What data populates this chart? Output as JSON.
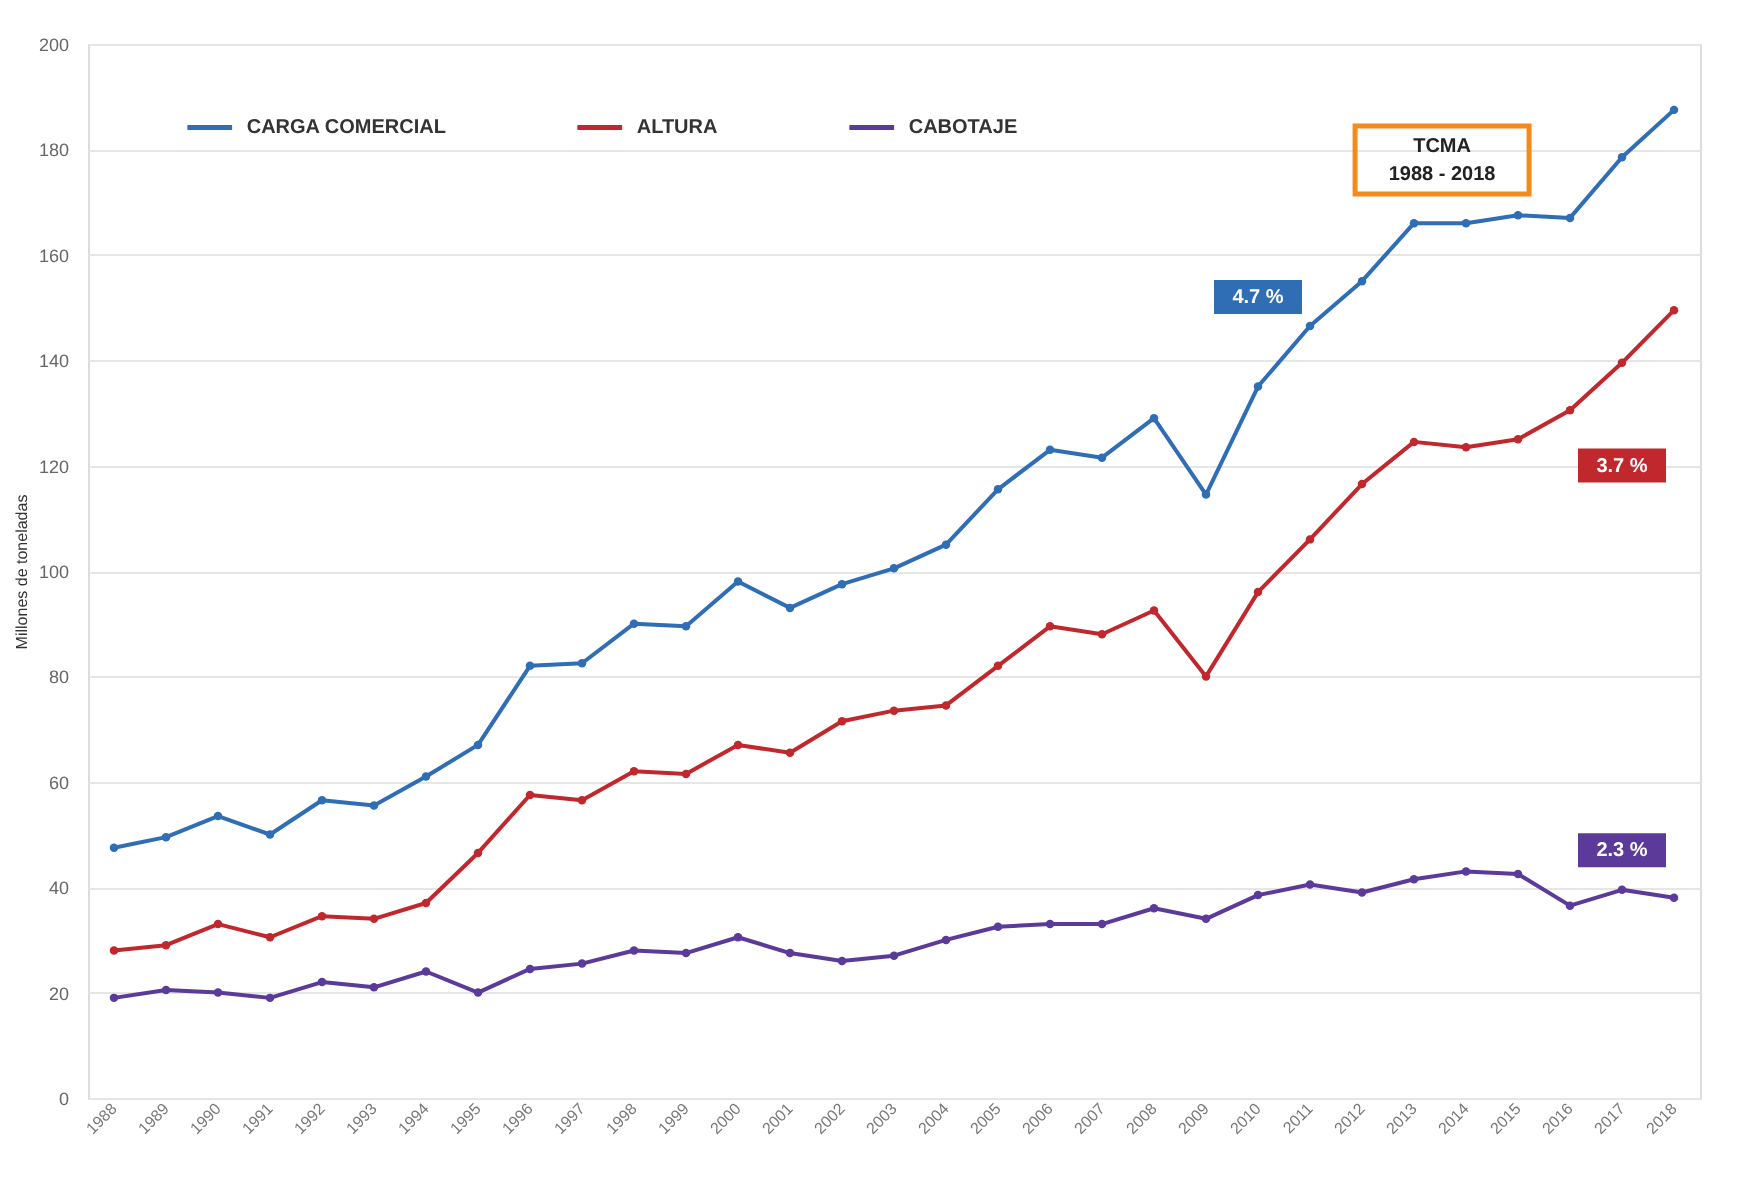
{
  "chart_data": {
    "type": "line",
    "ylabel": "Millones de toneladas",
    "categories": [
      "1988",
      "1989",
      "1990",
      "1991",
      "1992",
      "1993",
      "1994",
      "1995",
      "1996",
      "1997",
      "1998",
      "1999",
      "2000",
      "2001",
      "2002",
      "2003",
      "2004",
      "2005",
      "2006",
      "2007",
      "2008",
      "2009",
      "2010",
      "2011",
      "2012",
      "2013",
      "2014",
      "2015",
      "2016",
      "2017",
      "2018"
    ],
    "series": [
      {
        "name": "CARGA COMERCIAL",
        "color": "#2f6db5",
        "values": [
          47.5,
          49.5,
          53.5,
          50,
          56.5,
          55.5,
          61,
          67,
          82,
          82.5,
          90,
          89.5,
          98,
          93,
          97.5,
          100.5,
          105,
          115.5,
          123,
          121.5,
          129,
          114.5,
          135,
          146.5,
          155,
          166,
          166,
          167.5,
          167,
          178.5,
          187.5
        ]
      },
      {
        "name": "ALTURA",
        "color": "#c0282d",
        "values": [
          28,
          29,
          33,
          30.5,
          34.5,
          34,
          37,
          46.5,
          57.5,
          56.5,
          62,
          61.5,
          67,
          65.5,
          71.5,
          73.5,
          74.5,
          82,
          89.5,
          88,
          92.5,
          80,
          96,
          106,
          116.5,
          124.5,
          123.5,
          125,
          130.5,
          139.5,
          149.5
        ]
      },
      {
        "name": "CABOTAJE",
        "color": "#5b3a9a",
        "values": [
          19,
          20.5,
          20,
          19,
          22,
          21,
          24,
          20,
          24.5,
          25.5,
          28,
          27.5,
          30.5,
          27.5,
          26,
          27,
          30,
          32.5,
          33,
          33,
          36,
          34,
          38.5,
          40.5,
          39,
          41.5,
          43,
          42.5,
          36.5,
          39.5,
          38
        ]
      }
    ],
    "ylim": [
      0,
      200
    ],
    "yticks": [
      0,
      20,
      40,
      60,
      80,
      100,
      120,
      140,
      160,
      180,
      200
    ],
    "grid": "y",
    "legend": "top",
    "marker": "circle",
    "line_style": "solid",
    "annotations": [
      "TCMA\n1988 - 2018",
      {
        "text": "4.7 %",
        "x": "2010",
        "y": 152
      },
      {
        "text": "3.7 %",
        "x": "2017",
        "y": 120
      },
      {
        "text": "2.3 %",
        "x": "2017",
        "y": 47
      }
    ]
  }
}
